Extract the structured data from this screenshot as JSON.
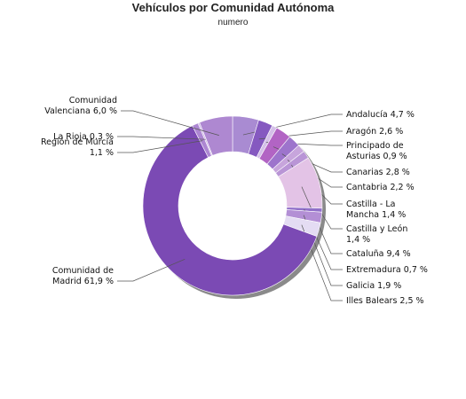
{
  "chart_data": {
    "type": "pie",
    "title": "Vehículos por Comunidad Autónoma",
    "subtitle": "numero",
    "donut": true,
    "series": [
      {
        "label": "Andalucía",
        "value": 4.7,
        "display": [
          "Andalucía 4,7 %"
        ],
        "color": "#a98bd2"
      },
      {
        "label": "Aragón",
        "value": 2.6,
        "display": [
          "Aragón 2,6 %"
        ],
        "color": "#8559c0"
      },
      {
        "label": "Principado de Asturias",
        "value": 0.9,
        "display": [
          "Principado de",
          "Asturias 0,9 %"
        ],
        "color": "#d4c0e8"
      },
      {
        "label": "Canarias",
        "value": 2.8,
        "display": [
          "Canarias 2,8 %"
        ],
        "color": "#b264c4"
      },
      {
        "label": "Cantabria",
        "value": 2.2,
        "display": [
          "Cantabria 2,2 %"
        ],
        "color": "#9d74cc"
      },
      {
        "label": "Castilla - La Mancha",
        "value": 1.4,
        "display": [
          "Castilla - La",
          "Mancha 1,4 %"
        ],
        "color": "#c7a5dc"
      },
      {
        "label": "Castilla y León",
        "value": 1.4,
        "display": [
          "Castilla y León",
          "1,4 %"
        ],
        "color": "#b995d6"
      },
      {
        "label": "Cataluña",
        "value": 9.4,
        "display": [
          "Cataluña 9,4 %"
        ],
        "color": "#e3c3e6"
      },
      {
        "label": "Extremadura",
        "value": 0.7,
        "display": [
          "Extremadura 0,7 %"
        ],
        "color": "#9170c9"
      },
      {
        "label": "Galicia",
        "value": 1.9,
        "display": [
          "Galicia 1,9 %"
        ],
        "color": "#b38fd5"
      },
      {
        "label": "Illes Balears",
        "value": 2.5,
        "display": [
          "Illes Balears 2,5 %"
        ],
        "color": "#e4dcf3"
      },
      {
        "label": "Comunidad de Madrid",
        "value": 61.9,
        "display": [
          "Comunidad de",
          "Madrid 61,9 %"
        ],
        "color": "#7b4ab4"
      },
      {
        "label": "Región de Murcia",
        "value": 1.1,
        "display": [
          "Región de Murcia",
          "1,1 %"
        ],
        "color": "#ad87d2"
      },
      {
        "label": "La Rioja",
        "value": 0.3,
        "display": [
          "La Rioja 0,3 %"
        ],
        "color": "#cdb6e6"
      },
      {
        "label": "Comunidad Valenciana",
        "value": 6.0,
        "display": [
          "Comunidad",
          "Valenciana 6,0 %"
        ],
        "color": "#ae88d1"
      }
    ]
  }
}
